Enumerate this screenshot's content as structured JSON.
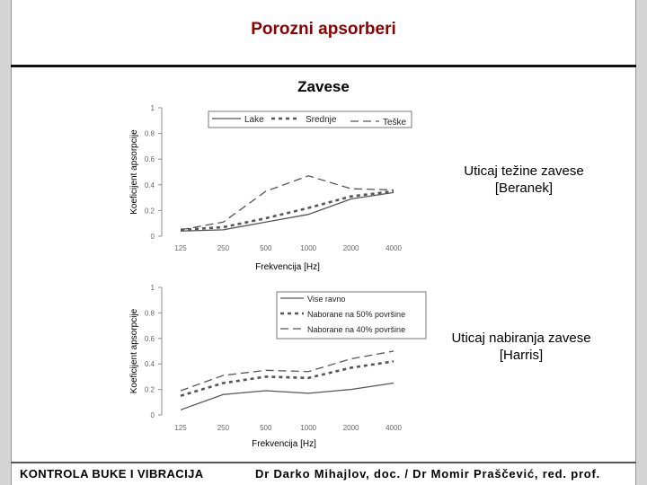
{
  "slide": {
    "title": "Porozni apsorberi",
    "heading": "Zavese"
  },
  "chart_data": [
    {
      "type": "line",
      "ylabel": "Koeficijent apsorpcije",
      "xlabel": "Frekvencija [Hz]",
      "categories": [
        "125",
        "250",
        "500",
        "1000",
        "2000",
        "4000"
      ],
      "ylim": [
        0,
        1
      ],
      "yticks": [
        "0",
        "0.2",
        "0.4",
        "0.6",
        "0.8",
        "1"
      ],
      "legend": "top, boxed",
      "series": [
        {
          "name": "Lake",
          "style": "solid",
          "values": [
            0.04,
            0.05,
            0.11,
            0.17,
            0.29,
            0.34
          ]
        },
        {
          "name": "Srednje",
          "style": "dotted-bold",
          "values": [
            0.05,
            0.07,
            0.14,
            0.22,
            0.31,
            0.35
          ]
        },
        {
          "name": "Teške",
          "style": "dashed",
          "values": [
            0.05,
            0.11,
            0.35,
            0.47,
            0.37,
            0.36
          ]
        }
      ],
      "caption": [
        "Uticaj težine zavese",
        "[Beranek]"
      ]
    },
    {
      "type": "line",
      "ylabel": "Koeficijent apsorpcije",
      "xlabel": "Frekvencija [Hz]",
      "categories": [
        "125",
        "250",
        "500",
        "1000",
        "2000",
        "4000"
      ],
      "ylim": [
        0,
        1
      ],
      "yticks": [
        "0",
        "0.2",
        "0.4",
        "0.6",
        "0.8",
        "1"
      ],
      "legend": "top-right, boxed",
      "series": [
        {
          "name": "Vise ravno",
          "style": "solid",
          "values": [
            0.04,
            0.16,
            0.19,
            0.17,
            0.2,
            0.25
          ]
        },
        {
          "name": "Naborane na 50% površine",
          "style": "dotted-bold",
          "values": [
            0.15,
            0.25,
            0.3,
            0.29,
            0.37,
            0.42
          ]
        },
        {
          "name": "Naborane na 40% površine",
          "style": "dashed",
          "values": [
            0.19,
            0.31,
            0.35,
            0.34,
            0.44,
            0.5
          ]
        }
      ],
      "caption": [
        "Uticaj nabiranja zavese",
        "[Harris]"
      ]
    }
  ],
  "footer": {
    "left": "KONTROLA BUKE I VIBRACIJA",
    "right": "Dr Darko Mihajlov, doc. / Dr Momir Praščević, red. prof."
  },
  "colors": {
    "title": "#8b0000",
    "chart_lines": "#555555",
    "axis": "#8c8c8c"
  }
}
